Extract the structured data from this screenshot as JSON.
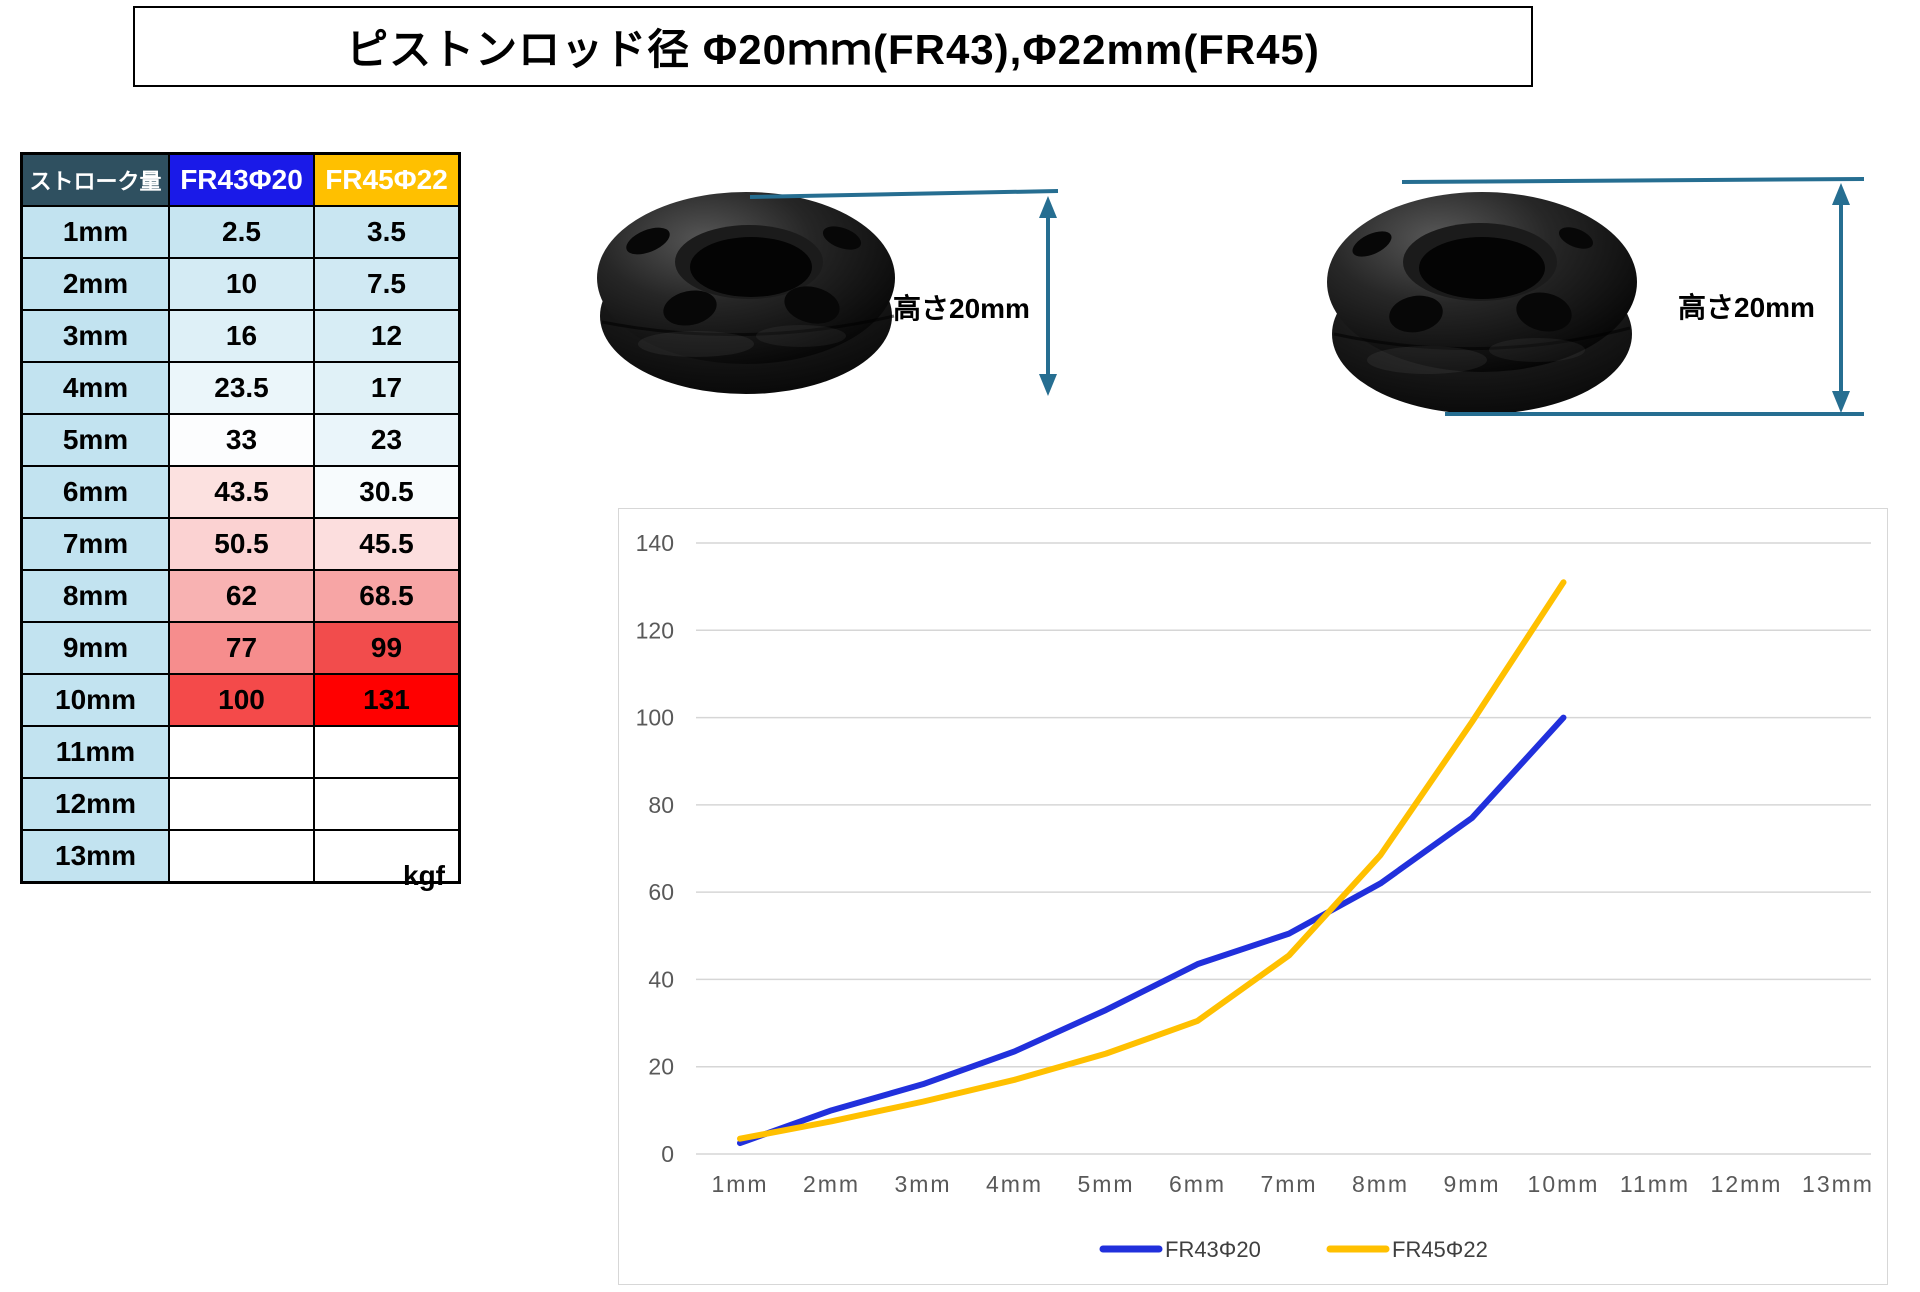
{
  "title": "ピストンロッド径 Φ20ｍｍ(FR43),Φ22mm(FR45)",
  "table": {
    "headers": [
      {
        "label": "ストローク量",
        "bg": "#2F5060",
        "fg": "#FFFFFF"
      },
      {
        "label": "FR43Φ20",
        "bg": "#1A1AE8",
        "fg": "#FFFFFF"
      },
      {
        "label": "FR45Φ22",
        "bg": "#FFC000",
        "fg": "#FFFFFF"
      }
    ],
    "row_label_fill": "#C2E3F0",
    "rows": [
      {
        "stroke": "1mm",
        "values": [
          "2.5",
          "3.5"
        ],
        "fills": [
          "#C7E5F1",
          "#C9E6F2"
        ]
      },
      {
        "stroke": "2mm",
        "values": [
          "10",
          "7.5"
        ],
        "fills": [
          "#D4EBF4",
          "#D0E9F3"
        ]
      },
      {
        "stroke": "3mm",
        "values": [
          "16",
          "12"
        ],
        "fills": [
          "#DEF0F7",
          "#D7EDF5"
        ]
      },
      {
        "stroke": "4mm",
        "values": [
          "23.5",
          "17"
        ],
        "fills": [
          "#EBF6FA",
          "#E0F1F7"
        ]
      },
      {
        "stroke": "5mm",
        "values": [
          "33",
          "23"
        ],
        "fills": [
          "#FCFDFE",
          "#EAF5FA"
        ]
      },
      {
        "stroke": "6mm",
        "values": [
          "43.5",
          "30.5"
        ],
        "fills": [
          "#FCE1E0",
          "#F7FBFD"
        ]
      },
      {
        "stroke": "7mm",
        "values": [
          "50.5",
          "45.5"
        ],
        "fills": [
          "#FBD2D2",
          "#FCDEDE"
        ]
      },
      {
        "stroke": "8mm",
        "values": [
          "62",
          "68.5"
        ],
        "fills": [
          "#F8B2B2",
          "#F7A5A5"
        ]
      },
      {
        "stroke": "9mm",
        "values": [
          "77",
          "99"
        ],
        "fills": [
          "#F68D8D",
          "#F24C4C"
        ]
      },
      {
        "stroke": "10mm",
        "values": [
          "100",
          "131"
        ],
        "fills": [
          "#F44A4A",
          "#FF0000"
        ]
      },
      {
        "stroke": "11mm",
        "values": [
          "",
          ""
        ],
        "fills": [
          "#FFFFFF",
          "#FFFFFF"
        ]
      },
      {
        "stroke": "12mm",
        "values": [
          "",
          ""
        ],
        "fills": [
          "#FFFFFF",
          "#FFFFFF"
        ]
      },
      {
        "stroke": "13mm",
        "values": [
          "",
          ""
        ],
        "fills": [
          "#FFFFFF",
          "#FFFFFF"
        ]
      }
    ],
    "unit_label": "kgf"
  },
  "photos": [
    {
      "caption": "高さ20mm"
    },
    {
      "caption": "高さ20mm"
    }
  ],
  "annotation_color": "#266E91",
  "chart_data": {
    "type": "line",
    "categories": [
      "1mm",
      "2mm",
      "3mm",
      "4mm",
      "5mm",
      "6mm",
      "7mm",
      "8mm",
      "9mm",
      "10mm",
      "11mm",
      "12mm",
      "13mm"
    ],
    "series": [
      {
        "name": "FR43Φ20",
        "color": "#2130DC",
        "values": [
          2.5,
          10,
          16,
          23.5,
          33,
          43.5,
          50.5,
          62,
          77,
          100
        ]
      },
      {
        "name": "FR45Φ22",
        "color": "#FFC000",
        "values": [
          3.5,
          7.5,
          12,
          17,
          23,
          30.5,
          45.5,
          68.5,
          99,
          131
        ]
      }
    ],
    "title": "",
    "xlabel": "",
    "ylabel": "",
    "ylim": [
      0,
      140
    ],
    "ytick_step": 20,
    "grid": true,
    "legend_position": "bottom",
    "axis_label_color": "#595959",
    "grid_color": "#D6D6D6"
  }
}
